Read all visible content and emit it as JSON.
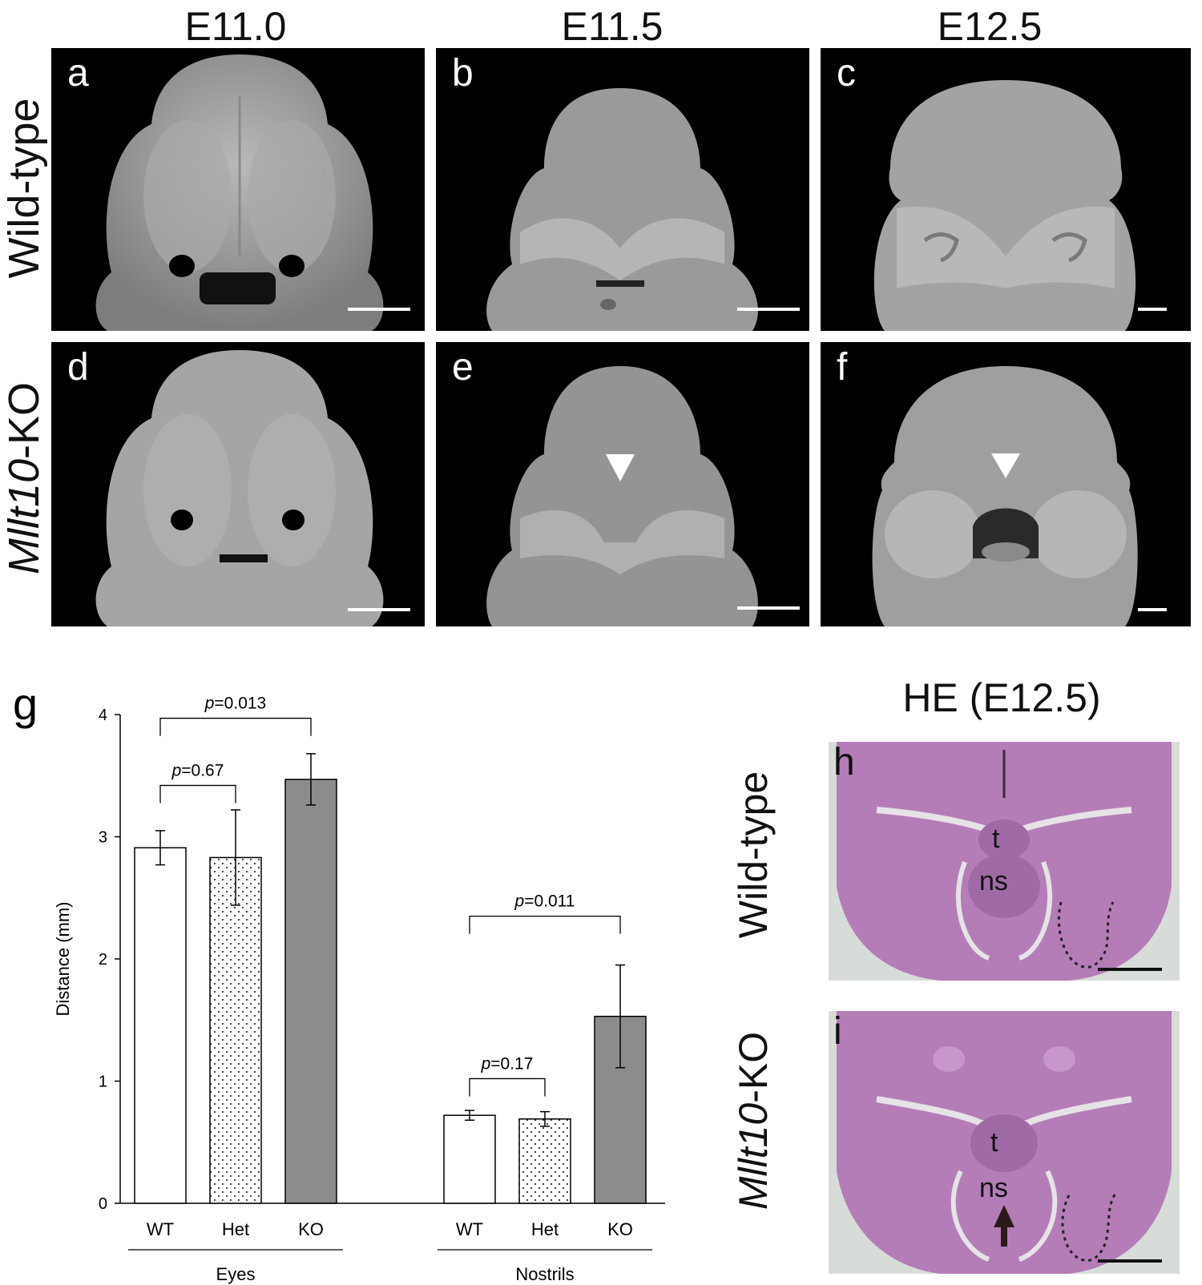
{
  "columns": [
    "E11.0",
    "E11.5",
    "E12.5"
  ],
  "rows": {
    "wild": "Wild-type",
    "ko_italic": "Mllt10",
    "ko_suffix": "-KO"
  },
  "panels": {
    "a": "a",
    "b": "b",
    "c": "c",
    "d": "d",
    "e": "e",
    "f": "f"
  },
  "he": {
    "title": "HE (E12.5)",
    "h": "h",
    "i": "i",
    "wild": "Wild-type",
    "ko_italic": "Mllt10",
    "ko_suffix": "-KO",
    "t": "t",
    "ns": "ns"
  },
  "chart_data": {
    "panel_label": "g",
    "type": "bar",
    "ylabel": "Distance (mm)",
    "ylim": [
      0,
      4
    ],
    "yticks": [
      "0",
      "1",
      "2",
      "3",
      "4"
    ],
    "groups": [
      {
        "name": "Eyes",
        "bars": [
          {
            "label": "WT",
            "value": 2.91,
            "err": 0.14,
            "fill": "white"
          },
          {
            "label": "Het",
            "value": 2.83,
            "err": 0.39,
            "fill": "dotted"
          },
          {
            "label": "KO",
            "value": 3.47,
            "err": 0.21,
            "fill": "gray"
          }
        ],
        "comparisons": [
          {
            "p_italic": "p",
            "p_text": "=0.67",
            "from": 0,
            "to": 1
          },
          {
            "p_italic": "p",
            "p_text": "=0.013",
            "from": 0,
            "to": 2
          }
        ]
      },
      {
        "name": "Nostrils",
        "bars": [
          {
            "label": "WT",
            "value": 0.72,
            "err": 0.04,
            "fill": "white"
          },
          {
            "label": "Het",
            "value": 0.69,
            "err": 0.06,
            "fill": "dotted"
          },
          {
            "label": "KO",
            "value": 1.53,
            "err": 0.42,
            "fill": "gray"
          }
        ],
        "comparisons": [
          {
            "p_italic": "p",
            "p_text": "=0.17",
            "from": 0,
            "to": 1
          },
          {
            "p_italic": "p",
            "p_text": "=0.011",
            "from": 0,
            "to": 2
          }
        ]
      }
    ],
    "colors": {
      "gray": "#8c8c8c",
      "white": "#ffffff",
      "axis": "#000000"
    }
  }
}
